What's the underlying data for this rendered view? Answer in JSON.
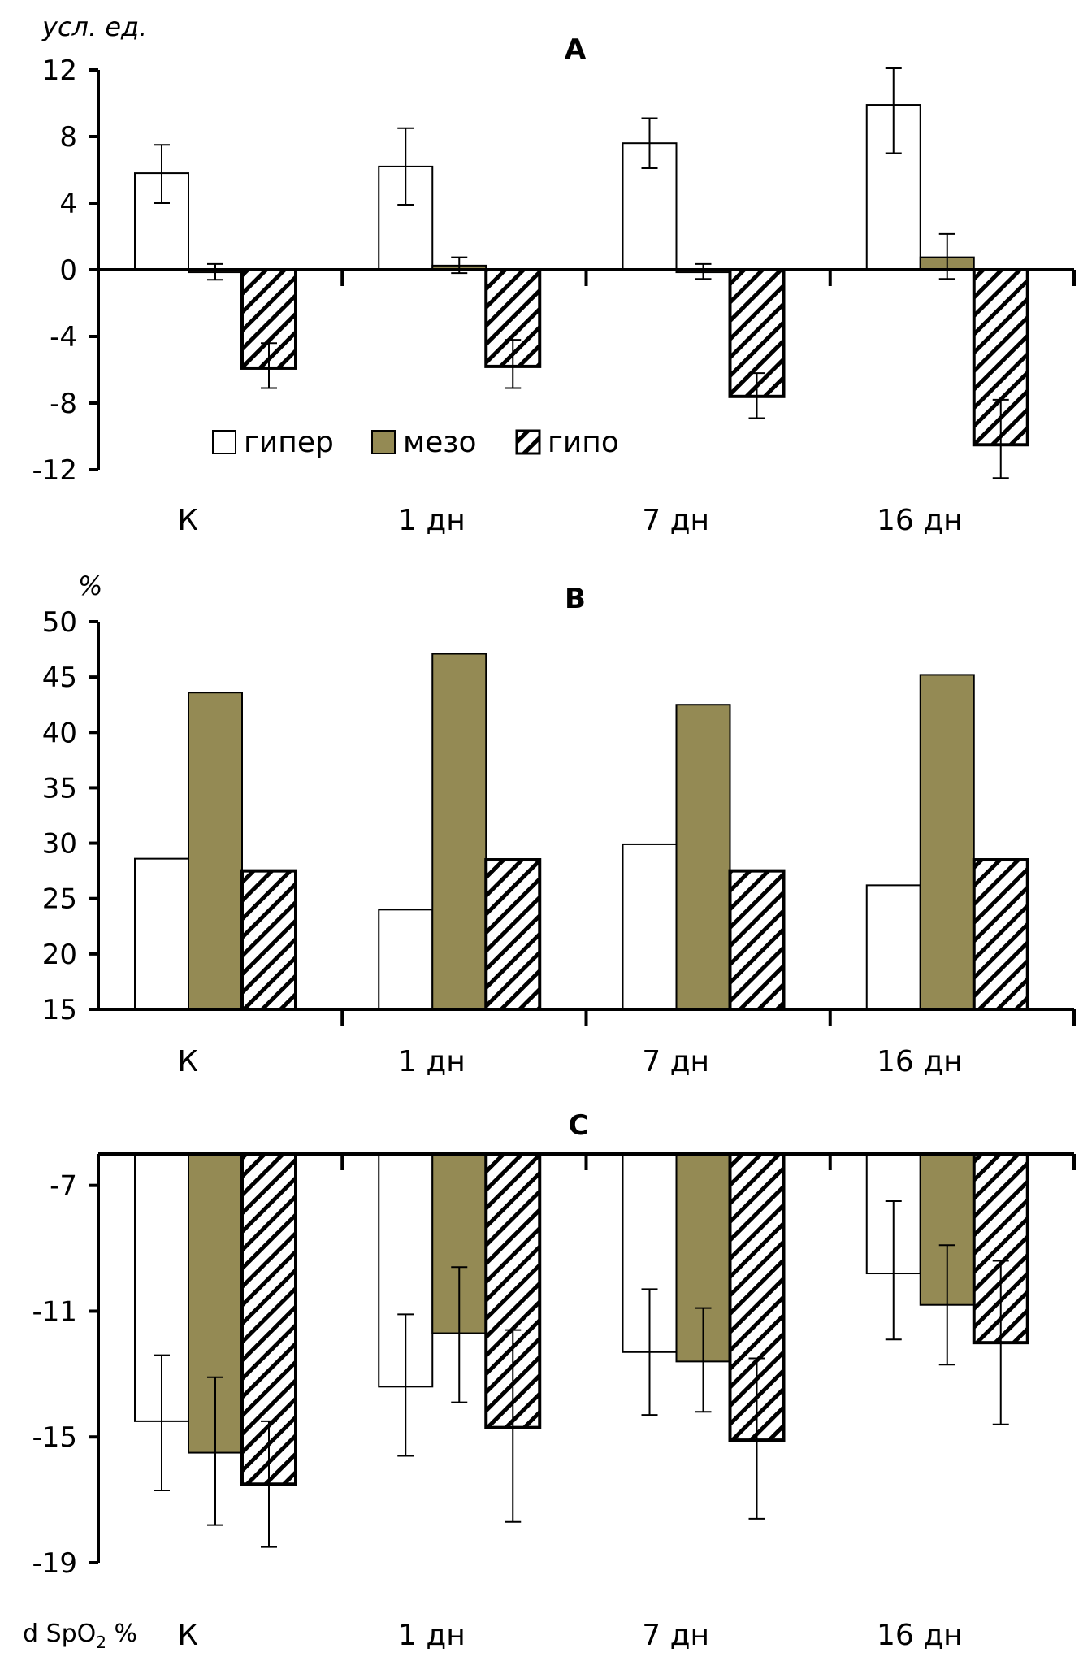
{
  "colors": {
    "hyper": "#ffffff",
    "meso": "#948a54",
    "hypo_pattern": "diagonal-hatch",
    "outline": "#000000"
  },
  "legend": [
    {
      "key": "hyper",
      "label": "гипер"
    },
    {
      "key": "meso",
      "label": "мезо"
    },
    {
      "key": "hypo",
      "label": "гипо"
    }
  ],
  "chart_data": [
    {
      "id": "A",
      "type": "bar",
      "title": "A",
      "ylabel": "усл. ед.",
      "xlabel": "",
      "ylim": [
        -12,
        12
      ],
      "yticks": [
        12,
        8,
        4,
        0,
        -4,
        -8,
        -12
      ],
      "legend_position": "bottom-left",
      "categories": [
        "К",
        "1 дн",
        "7 дн",
        "16 дн"
      ],
      "series": [
        {
          "name": "гипер",
          "key": "hyper",
          "values": [
            5.8,
            6.2,
            7.6,
            9.9
          ],
          "err_high": [
            7.5,
            8.5,
            9.1,
            12.1
          ],
          "err_low": [
            4.0,
            3.9,
            6.1,
            7.0
          ]
        },
        {
          "name": "мезо",
          "key": "meso",
          "values": [
            -0.15,
            0.25,
            -0.15,
            0.75
          ],
          "err_high": [
            0.35,
            0.75,
            0.35,
            2.15
          ],
          "err_low": [
            -0.6,
            -0.2,
            -0.55,
            -0.55
          ]
        },
        {
          "name": "гипо",
          "key": "hypo",
          "values": [
            -5.9,
            -5.8,
            -7.6,
            -10.5
          ],
          "err_high": [
            -4.4,
            -4.2,
            -6.2,
            -7.8
          ],
          "err_low": [
            -7.1,
            -7.1,
            -8.9,
            -12.5
          ]
        }
      ]
    },
    {
      "id": "B",
      "type": "bar",
      "title": "B",
      "ylabel": "%",
      "xlabel": "",
      "ylim": [
        15,
        50
      ],
      "yticks": [
        50,
        45,
        40,
        35,
        30,
        25,
        20,
        15
      ],
      "categories": [
        "К",
        "1 дн",
        "7 дн",
        "16 дн"
      ],
      "series": [
        {
          "name": "гипер",
          "key": "hyper",
          "values": [
            28.6,
            24.0,
            29.9,
            26.2
          ]
        },
        {
          "name": "мезо",
          "key": "meso",
          "values": [
            43.6,
            47.1,
            42.5,
            45.2
          ]
        },
        {
          "name": "гипо",
          "key": "hypo",
          "values": [
            27.5,
            28.5,
            27.5,
            28.5
          ]
        }
      ]
    },
    {
      "id": "C",
      "type": "bar",
      "title": "C",
      "ylabel": "d SpO2 %",
      "xlabel": "",
      "ylim": [
        -19,
        -6
      ],
      "baseline": -6,
      "yticks": [
        -7,
        -11,
        -15,
        -19
      ],
      "categories": [
        "К",
        "1 дн",
        "7 дн",
        "16 дн"
      ],
      "series": [
        {
          "name": "гипер",
          "key": "hyper",
          "values": [
            -14.5,
            -13.4,
            -12.3,
            -9.8
          ],
          "err_high": [
            -12.4,
            -11.1,
            -10.3,
            -7.5
          ],
          "err_low": [
            -16.7,
            -15.6,
            -14.3,
            -11.9
          ]
        },
        {
          "name": "мезо",
          "key": "meso",
          "values": [
            -15.5,
            -11.7,
            -12.6,
            -10.8
          ],
          "err_high": [
            -13.1,
            -9.6,
            -10.9,
            -8.9
          ],
          "err_low": [
            -17.8,
            -13.9,
            -14.2,
            -12.7
          ]
        },
        {
          "name": "гипо",
          "key": "hypo",
          "values": [
            -16.5,
            -14.7,
            -15.1,
            -12.0
          ],
          "err_high": [
            -14.5,
            -11.6,
            -12.5,
            -9.4
          ],
          "err_low": [
            -18.5,
            -17.7,
            -17.6,
            -14.6
          ]
        }
      ]
    }
  ]
}
